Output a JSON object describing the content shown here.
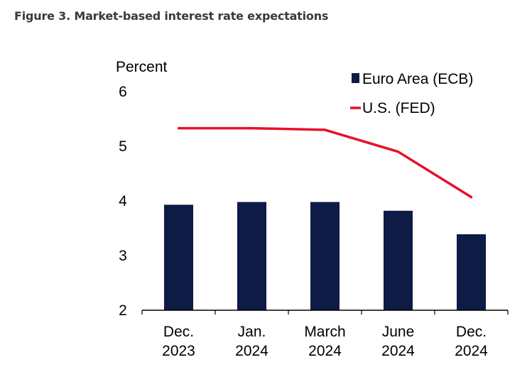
{
  "figure_title": "Figure 3. Market-based interest rate expectations",
  "colors": {
    "bar": "#0d1b45",
    "line": "#e8102a",
    "axis": "#000000",
    "title": "#3a3a3a"
  },
  "chart_data": {
    "type": "bar",
    "title": "",
    "xlabel": "",
    "ylabel": "Percent",
    "ylim": [
      2,
      6
    ],
    "yticks": [
      "2",
      "3",
      "4",
      "5",
      "6"
    ],
    "grid": false,
    "legend_placement": "top-right",
    "categories": [
      [
        "Dec.",
        "2023"
      ],
      [
        "Jan.",
        "2024"
      ],
      [
        "March",
        "2024"
      ],
      [
        "June",
        "2024"
      ],
      [
        "Dec.",
        "2024"
      ]
    ],
    "series": [
      {
        "name": "Euro Area (ECB)",
        "kind": "bar",
        "values": [
          3.93,
          3.98,
          3.98,
          3.82,
          3.39
        ]
      },
      {
        "name": "U.S. (FED)",
        "kind": "line",
        "values": [
          5.33,
          5.33,
          5.3,
          4.9,
          4.07
        ]
      }
    ]
  }
}
